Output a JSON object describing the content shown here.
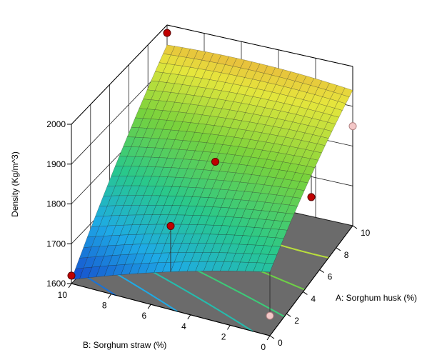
{
  "chart_data": {
    "type": "surface3d",
    "zlabel": "Density  (Kg/m^3)",
    "xlabel": "A: Sorghum husk (%)",
    "ylabel": "B: Sorghum straw (%)",
    "z_ticks": [
      "1600",
      "1700",
      "1800",
      "1900",
      "2000"
    ],
    "a_ticks": [
      "0",
      "2",
      "4",
      "6",
      "8",
      "10"
    ],
    "b_ticks": [
      "0",
      "2",
      "4",
      "6",
      "8",
      "10"
    ],
    "zlim": [
      1600,
      2000
    ],
    "xlim": [
      0,
      10
    ],
    "ylim": [
      0,
      10
    ],
    "surface_corners": {
      "a0_b0": 1760,
      "a10_b0": 1940,
      "a10_b10": 1950,
      "a0_b10": 1610
    },
    "design_points": [
      {
        "a": 0,
        "b": 10,
        "density": 1620,
        "above_surface": true
      },
      {
        "a": 0,
        "b": 5,
        "density": 1810,
        "above_surface": true
      },
      {
        "a": 0,
        "b": 0,
        "density": 1650,
        "above_surface": false
      },
      {
        "a": 5,
        "b": 5,
        "density": 1840,
        "above_surface": true
      },
      {
        "a": 10,
        "b": 10,
        "density": 1980,
        "above_surface": true
      },
      {
        "a": 5,
        "b": 0,
        "density": 1810,
        "above_surface": true
      },
      {
        "a": 10,
        "b": 0,
        "density": 1850,
        "above_surface": false
      },
      {
        "a": 10,
        "b": 5,
        "density": 1920,
        "above_surface": false
      }
    ],
    "colormap": "blue-cyan-green-yellow-red",
    "floor_color": "#6b6b6b",
    "contour_levels": [
      1650,
      1700,
      1750,
      1800,
      1850,
      1900
    ]
  }
}
